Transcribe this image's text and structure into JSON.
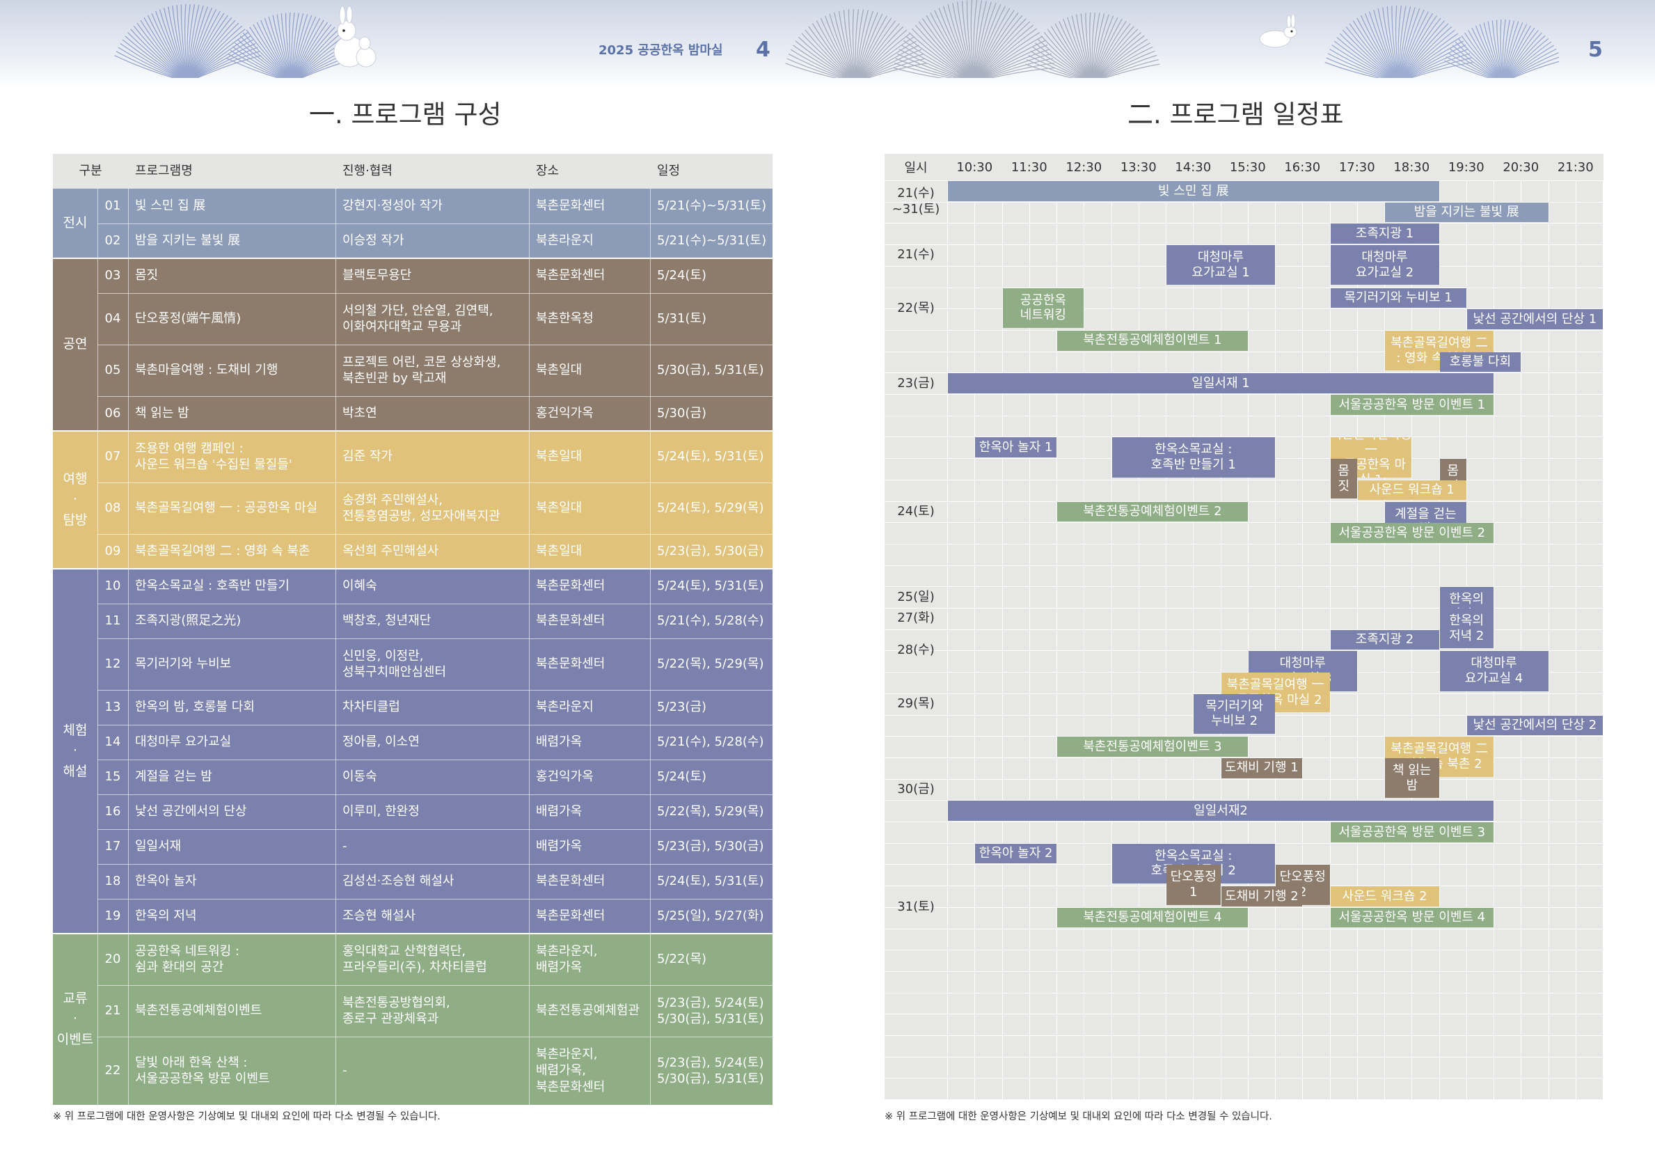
{
  "colors": {
    "exhibit": "#8b9bb8",
    "performance": "#8d7b6b",
    "travel": "#e0c27a",
    "experience": "#7b81ad",
    "exchange": "#8fae86",
    "header_blue": "#5b72a8"
  },
  "header": {
    "doc_label": "2025 공공한옥 밤마실",
    "page_left": "4",
    "page_right": "5"
  },
  "left": {
    "title": "一. 프로그램 구성",
    "columns": [
      "구분",
      "프로그램명",
      "진행·협력",
      "장소",
      "일정"
    ],
    "categories": [
      {
        "label": "전시",
        "color": "exhibit",
        "rows": 2
      },
      {
        "label": "공연",
        "color": "performance",
        "rows": 4
      },
      {
        "label": "여행\n·\n탐방",
        "color": "travel",
        "rows": 3
      },
      {
        "label": "체험\n·\n해설",
        "color": "experience",
        "rows": 10
      },
      {
        "label": "교류\n·\n이벤트",
        "color": "exchange",
        "rows": 3
      }
    ],
    "rows": [
      {
        "num": "01",
        "name": "빛 스민 집 展",
        "partner": "강현지·정성아 작가",
        "place": "북촌문화센터",
        "date": "5/21(수)~5/31(토)"
      },
      {
        "num": "02",
        "name": "밤을 지키는 불빛 展",
        "partner": "이승정 작가",
        "place": "북촌라운지",
        "date": "5/21(수)~5/31(토)"
      },
      {
        "num": "03",
        "name": "몸짓",
        "partner": "블랙토무용단",
        "place": "북촌문화센터",
        "date": "5/24(토)"
      },
      {
        "num": "04",
        "name": "단오풍정(端午風情)",
        "partner": "서의철 가단, 안순열, 김연택,\n이화여자대학교 무용과",
        "place": "북촌한옥청",
        "date": "5/31(토)"
      },
      {
        "num": "05",
        "name": "북촌마을여행 : 도채비 기행",
        "partner": "프로젝트 어린, 코몬 상상화생,\n북촌빈관 by 락고재",
        "place": "북촌일대",
        "date": "5/30(금), 5/31(토)"
      },
      {
        "num": "06",
        "name": "책 읽는 밤",
        "partner": "박초연",
        "place": "홍건익가옥",
        "date": "5/30(금)"
      },
      {
        "num": "07",
        "name": "조용한 여행 캠페인 :\n사운드 워크숍 '수집된 물질들'",
        "partner": "김준 작가",
        "place": "북촌일대",
        "date": "5/24(토), 5/31(토)"
      },
      {
        "num": "08",
        "name": "북촌골목길여행 一 : 공공한옥 마실",
        "partner": "송경화 주민해설사,\n전통흥염공방, 성모자애복지관",
        "place": "북촌일대",
        "date": "5/24(토), 5/29(목)"
      },
      {
        "num": "09",
        "name": "북촌골목길여행 二 : 영화 속 북촌",
        "partner": "옥선희 주민해설사",
        "place": "북촌일대",
        "date": "5/23(금), 5/30(금)"
      },
      {
        "num": "10",
        "name": "한옥소목교실 : 호족반 만들기",
        "partner": "이혜숙",
        "place": "북촌문화센터",
        "date": "5/24(토), 5/31(토)"
      },
      {
        "num": "11",
        "name": "조족지광(照足之光)",
        "partner": "백창호, 청년재단",
        "place": "북촌문화센터",
        "date": "5/21(수), 5/28(수)"
      },
      {
        "num": "12",
        "name": "목기러기와 누비보",
        "partner": "신민웅, 이정란,\n성북구치매안심센터",
        "place": "북촌문화센터",
        "date": "5/22(목), 5/29(목)"
      },
      {
        "num": "13",
        "name": "한옥의 밤, 호롱불 다회",
        "partner": "차차티클럽",
        "place": "북촌라운지",
        "date": "5/23(금)"
      },
      {
        "num": "14",
        "name": "대청마루 요가교실",
        "partner": "정아름, 이소연",
        "place": "배렴가옥",
        "date": "5/21(수), 5/28(수)"
      },
      {
        "num": "15",
        "name": "계절을 걷는 밤",
        "partner": "이동숙",
        "place": "홍건익가옥",
        "date": "5/24(토)"
      },
      {
        "num": "16",
        "name": "낯선 공간에서의 단상",
        "partner": "이루미, 한완정",
        "place": "배렴가옥",
        "date": "5/22(목), 5/29(목)"
      },
      {
        "num": "17",
        "name": "일일서재",
        "partner": "-",
        "place": "배렴가옥",
        "date": "5/23(금), 5/30(금)"
      },
      {
        "num": "18",
        "name": "한옥아 놀자",
        "partner": "김성선·조승현 해설사",
        "place": "북촌문화센터",
        "date": "5/24(토), 5/31(토)"
      },
      {
        "num": "19",
        "name": "한옥의 저녁",
        "partner": "조승현 해설사",
        "place": "북촌문화센터",
        "date": "5/25(일), 5/27(화)"
      },
      {
        "num": "20",
        "name": "공공한옥 네트워킹 :\n쉼과 환대의 공간",
        "partner": "홍익대학교 산학협력단,\n프라우들리(주), 차차티클럽",
        "place": "북촌라운지,\n배렴가옥",
        "date": "5/22(목)"
      },
      {
        "num": "21",
        "name": "북촌전통공예체험이벤트",
        "partner": "북촌전통공방협의회,\n종로구 관광체육과",
        "place": "북촌전통공예체험관",
        "date": "5/23(금), 5/24(토)\n5/30(금), 5/31(토)"
      },
      {
        "num": "22",
        "name": "달빛 아래 한옥 산책 :\n서울공공한옥 방문 이벤트",
        "partner": "-",
        "place": "북촌라운지,\n배렴가옥,\n북촌문화센터",
        "date": "5/23(금), 5/24(토)\n5/30(금), 5/31(토)"
      }
    ],
    "note": "※ 위 프로그램에 대한 운영사항은 기상예보 및 대내외 요인에 따라 다소 변경될 수 있습니다."
  },
  "right": {
    "title": "二. 프로그램 일정표",
    "head_label": "일시",
    "times": [
      "10:30",
      "11:30",
      "12:30",
      "13:30",
      "14:30",
      "15:30",
      "16:30",
      "17:30",
      "18:30",
      "19:30",
      "20:30",
      "21:30"
    ],
    "days": [
      "21(수)\n~31(토)",
      "21(수)",
      "22(목)",
      "23(금)",
      "24(토)",
      "25(일)",
      "27(화)",
      "28(수)",
      "29(목)",
      "30(금)",
      "31(토)"
    ],
    "events": [
      {
        "day": "21(수) ~31(토)",
        "label": "빛 스민 집 展",
        "start": "10:30",
        "end": "19:30",
        "color": "exhibit"
      },
      {
        "day": "21(수) ~31(토)",
        "label": "밤을 지키는 불빛 展",
        "start": "18:30",
        "end": "21:30",
        "color": "exhibit"
      },
      {
        "day": "21(수)",
        "label": "조족지광 1",
        "start": "17:30",
        "end": "19:30",
        "color": "experience"
      },
      {
        "day": "21(수)",
        "label": "대청마루\n요가교실 1",
        "start": "14:30",
        "end": "16:30",
        "color": "experience"
      },
      {
        "day": "21(수)",
        "label": "대청마루\n요가교실 2",
        "start": "17:30",
        "end": "19:30",
        "color": "experience"
      },
      {
        "day": "22(목)",
        "label": "공공한옥\n네트워킹",
        "start": "11:30",
        "end": "13:00",
        "color": "exchange"
      },
      {
        "day": "22(목)",
        "label": "목기러기와 누비보 1",
        "start": "17:30",
        "end": "20:00",
        "color": "experience"
      },
      {
        "day": "22(목)",
        "label": "낯선 공간에서의 단상 1",
        "start": "20:00",
        "end": "22:30",
        "color": "experience"
      },
      {
        "day": "23(금)",
        "label": "북촌전통공예체험이벤트 1",
        "start": "12:30",
        "end": "16:00",
        "color": "exchange"
      },
      {
        "day": "23(금)",
        "label": "북촌골목길여행 二\n: 영화 속 북촌 1",
        "start": "18:30",
        "end": "20:30",
        "color": "travel"
      },
      {
        "day": "23(금)",
        "label": "호롱불 다회",
        "start": "19:30",
        "end": "21:00",
        "color": "experience"
      },
      {
        "day": "23(금)",
        "label": "일일서재 1",
        "start": "10:30",
        "end": "20:30",
        "color": "experience"
      },
      {
        "day": "23(금)",
        "label": "서울공공한옥 방문 이벤트 1",
        "start": "17:30",
        "end": "20:30",
        "color": "exchange"
      },
      {
        "day": "24(토)",
        "label": "한옥아 놀자 1",
        "start": "11:00",
        "end": "12:30",
        "color": "experience"
      },
      {
        "day": "24(토)",
        "label": "한옥소목교실 :\n호족반 만들기 1",
        "start": "13:30",
        "end": "16:30",
        "color": "experience"
      },
      {
        "day": "24(토)",
        "label": "북촌골목길여행 一\n: 공공한옥 마실 1",
        "start": "17:30",
        "end": "19:00",
        "color": "travel"
      },
      {
        "day": "24(토)",
        "label": "몸\n짓",
        "start": "17:30",
        "end": "18:00",
        "color": "performance"
      },
      {
        "day": "24(토)",
        "label": "몸\n짓",
        "start": "19:30",
        "end": "20:00",
        "color": "performance"
      },
      {
        "day": "24(토)",
        "label": "사운드 워크숍 1",
        "start": "18:00",
        "end": "20:00",
        "color": "travel"
      },
      {
        "day": "24(토)",
        "label": "북촌전통공예체험이벤트 2",
        "start": "12:30",
        "end": "16:00",
        "color": "exchange"
      },
      {
        "day": "24(토)",
        "label": "계절을 걷는\n밤",
        "start": "18:30",
        "end": "20:00",
        "color": "experience"
      },
      {
        "day": "24(토)",
        "label": "서울공공한옥 방문 이벤트 2",
        "start": "17:30",
        "end": "20:30",
        "color": "exchange"
      },
      {
        "day": "25(일)",
        "label": "한옥의\n저녁 1",
        "start": "19:30",
        "end": "20:30",
        "color": "experience"
      },
      {
        "day": "27(화)",
        "label": "한옥의\n저녁 2",
        "start": "19:30",
        "end": "20:30",
        "color": "experience"
      },
      {
        "day": "28(수)",
        "label": "조족지광 2",
        "start": "17:30",
        "end": "19:30",
        "color": "experience"
      },
      {
        "day": "28(수)",
        "label": "대청마루\n요가교실 3",
        "start": "16:00",
        "end": "18:00",
        "color": "experience"
      },
      {
        "day": "28(수)",
        "label": "대청마루\n요가교실 4",
        "start": "19:30",
        "end": "21:30",
        "color": "experience"
      },
      {
        "day": "29(목)",
        "label": "북촌골목길여행 一\n: 공공한옥 마실 2",
        "start": "15:30",
        "end": "17:30",
        "color": "travel"
      },
      {
        "day": "29(목)",
        "label": "목기러기와\n누비보 2",
        "start": "15:00",
        "end": "16:30",
        "color": "experience"
      },
      {
        "day": "29(목)",
        "label": "낯선 공간에서의 단상 2",
        "start": "20:00",
        "end": "22:30",
        "color": "experience"
      },
      {
        "day": "30(금)",
        "label": "북촌전통공예체험이벤트 3",
        "start": "12:30",
        "end": "16:00",
        "color": "exchange"
      },
      {
        "day": "30(금)",
        "label": "북촌골목길여행 二\n: 영화 속 북촌 2",
        "start": "18:30",
        "end": "20:30",
        "color": "travel"
      },
      {
        "day": "30(금)",
        "label": "도채비 기행 1",
        "start": "15:30",
        "end": "17:00",
        "color": "performance"
      },
      {
        "day": "30(금)",
        "label": "책 읽는\n밤",
        "start": "18:30",
        "end": "19:30",
        "color": "performance"
      },
      {
        "day": "30(금)",
        "label": "일일서재2",
        "start": "10:30",
        "end": "20:30",
        "color": "experience"
      },
      {
        "day": "30(금)",
        "label": "서울공공한옥 방문 이벤트 3",
        "start": "17:30",
        "end": "20:30",
        "color": "exchange"
      },
      {
        "day": "31(토)",
        "label": "한옥아 놀자 2",
        "start": "11:00",
        "end": "12:30",
        "color": "experience"
      },
      {
        "day": "31(토)",
        "label": "한옥소목교실 :\n호족반 만들기 2",
        "start": "13:30",
        "end": "16:30",
        "color": "experience"
      },
      {
        "day": "31(토)",
        "label": "단오풍정\n1",
        "start": "14:30",
        "end": "15:30",
        "color": "performance"
      },
      {
        "day": "31(토)",
        "label": "단오풍정\n2",
        "start": "16:30",
        "end": "17:30",
        "color": "performance"
      },
      {
        "day": "31(토)",
        "label": "도채비 기행 2",
        "start": "15:30",
        "end": "17:00",
        "color": "performance"
      },
      {
        "day": "31(토)",
        "label": "사운드 워크숍 2",
        "start": "17:30",
        "end": "19:30",
        "color": "travel"
      },
      {
        "day": "31(토)",
        "label": "북촌전통공예체험이벤트 4",
        "start": "12:30",
        "end": "16:00",
        "color": "exchange"
      },
      {
        "day": "31(토)",
        "label": "서울공공한옥 방문 이벤트 4",
        "start": "17:30",
        "end": "20:30",
        "color": "exchange"
      }
    ],
    "note": "※ 위 프로그램에 대한 운영사항은 기상예보 및 대내외 요인에 따라 다소 변경될 수 있습니다."
  }
}
